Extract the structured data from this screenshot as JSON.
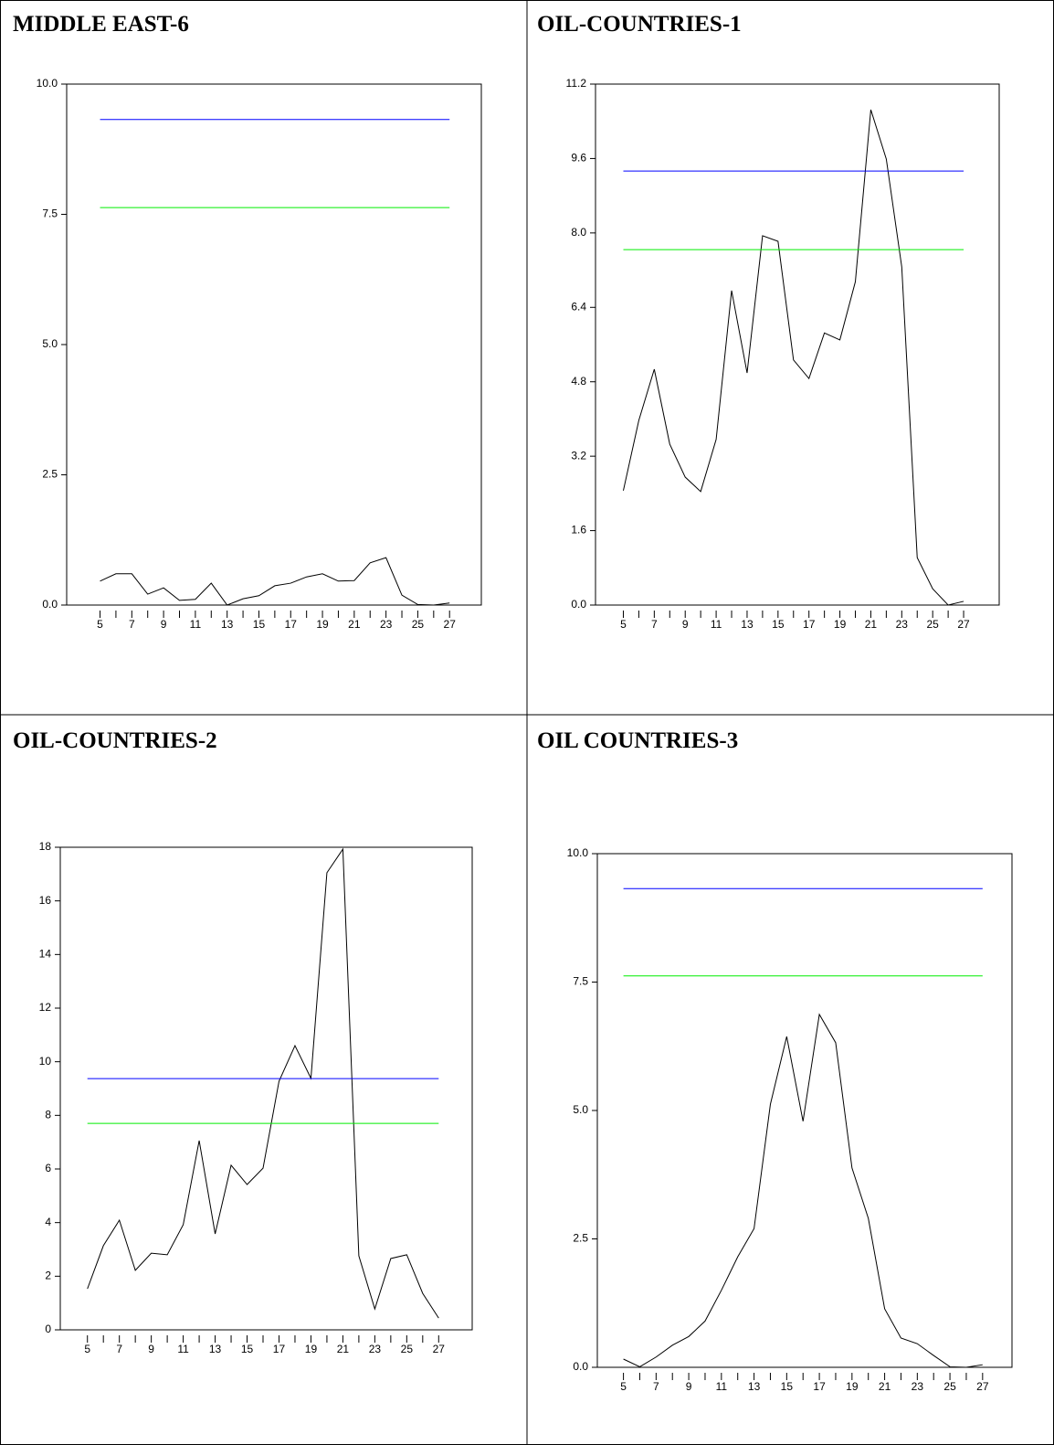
{
  "chart_data": [
    {
      "type": "line",
      "title": "MIDDLE EAST-6",
      "x": [
        5,
        6,
        7,
        8,
        9,
        10,
        11,
        12,
        13,
        14,
        15,
        16,
        17,
        18,
        19,
        20,
        21,
        22,
        23,
        24,
        25,
        26,
        27
      ],
      "series": [
        {
          "color": "#000000",
          "values": [
            0.46,
            0.6,
            0.6,
            0.21,
            0.33,
            0.09,
            0.11,
            0.42,
            0,
            0.12,
            0.18,
            0.37,
            0.42,
            0.54,
            0.6,
            0.46,
            0.47,
            0.81,
            0.91,
            0.19,
            0.01,
            0,
            0.04
          ]
        },
        {
          "color": "#0000ff",
          "values": [
            9.32,
            9.32,
            9.32,
            9.32,
            9.32,
            9.32,
            9.32,
            9.32,
            9.32,
            9.32,
            9.32,
            9.32,
            9.32,
            9.32,
            9.32,
            9.32,
            9.32,
            9.32,
            9.32,
            9.32,
            9.32,
            9.32,
            9.32
          ]
        },
        {
          "color": "#00ee00",
          "values": [
            7.63,
            7.63,
            7.63,
            7.63,
            7.63,
            7.63,
            7.63,
            7.63,
            7.63,
            7.63,
            7.63,
            7.63,
            7.63,
            7.63,
            7.63,
            7.63,
            7.63,
            7.63,
            7.63,
            7.63,
            7.63,
            7.63,
            7.63
          ]
        }
      ],
      "xlim": [
        2.9,
        29
      ],
      "xticks": [
        5,
        7,
        9,
        11,
        13,
        15,
        17,
        19,
        21,
        23,
        25,
        27
      ],
      "ylim": [
        0,
        10
      ],
      "yticks": [
        {
          "value": 0,
          "label": "0.0"
        },
        {
          "value": 2.5,
          "label": "2.5"
        },
        {
          "value": 5,
          "label": "5.0"
        },
        {
          "value": 7.5,
          "label": "7.5"
        },
        {
          "value": 10,
          "label": "10.0"
        }
      ]
    },
    {
      "type": "line",
      "title": "OIL-COUNTRIES-1",
      "x": [
        5,
        6,
        7,
        8,
        9,
        10,
        11,
        12,
        13,
        14,
        15,
        16,
        17,
        18,
        19,
        20,
        21,
        22,
        23,
        24,
        25,
        26,
        27
      ],
      "series": [
        {
          "color": "#000000",
          "values": [
            2.46,
            3.97,
            5.07,
            3.46,
            2.75,
            2.44,
            3.56,
            6.76,
            4.99,
            7.94,
            7.82,
            5.27,
            4.87,
            5.85,
            5.7,
            6.95,
            10.65,
            9.59,
            7.27,
            1.02,
            0.35,
            0,
            0.08
          ]
        },
        {
          "color": "#0000ff",
          "values": [
            9.33,
            9.33,
            9.33,
            9.33,
            9.33,
            9.33,
            9.33,
            9.33,
            9.33,
            9.33,
            9.33,
            9.33,
            9.33,
            9.33,
            9.33,
            9.33,
            9.33,
            9.33,
            9.33,
            9.33,
            9.33,
            9.33,
            9.33
          ]
        },
        {
          "color": "#00ee00",
          "values": [
            7.64,
            7.64,
            7.64,
            7.64,
            7.64,
            7.64,
            7.64,
            7.64,
            7.64,
            7.64,
            7.64,
            7.64,
            7.64,
            7.64,
            7.64,
            7.64,
            7.64,
            7.64,
            7.64,
            7.64,
            7.64,
            7.64,
            7.64
          ]
        }
      ],
      "xlim": [
        3.2,
        29.3
      ],
      "xticks": [
        5,
        7,
        9,
        11,
        13,
        15,
        17,
        19,
        21,
        23,
        25,
        27
      ],
      "ylim": [
        0,
        11.2
      ],
      "yticks": [
        {
          "value": 0,
          "label": "0.0"
        },
        1.6,
        3.2,
        4.8,
        6.4,
        {
          "value": 8,
          "label": "8.0"
        },
        9.6,
        11.2
      ]
    },
    {
      "type": "line",
      "title": "OIL-COUNTRIES-2",
      "x": [
        5,
        6,
        7,
        8,
        9,
        10,
        11,
        12,
        13,
        14,
        15,
        16,
        17,
        18,
        19,
        20,
        21,
        22,
        23,
        24,
        25,
        26,
        27
      ],
      "series": [
        {
          "color": "#000000",
          "values": [
            1.53,
            3.14,
            4.09,
            2.22,
            2.86,
            2.8,
            3.92,
            7.06,
            3.58,
            6.14,
            5.42,
            6.03,
            9.27,
            10.6,
            9.38,
            17.05,
            17.93,
            2.76,
            0.78,
            2.66,
            2.8,
            1.36,
            0.44
          ]
        },
        {
          "color": "#0000ff",
          "values": [
            9.37,
            9.37,
            9.37,
            9.37,
            9.37,
            9.37,
            9.37,
            9.37,
            9.37,
            9.37,
            9.37,
            9.37,
            9.37,
            9.37,
            9.37,
            9.37,
            9.37,
            9.37,
            9.37,
            9.37,
            9.37,
            9.37,
            9.37
          ]
        },
        {
          "color": "#00ee00",
          "values": [
            7.7,
            7.7,
            7.7,
            7.7,
            7.7,
            7.7,
            7.7,
            7.7,
            7.7,
            7.7,
            7.7,
            7.7,
            7.7,
            7.7,
            7.7,
            7.7,
            7.7,
            7.7,
            7.7,
            7.7,
            7.7,
            7.7,
            7.7
          ]
        }
      ],
      "xlim": [
        3.3,
        29.1
      ],
      "xticks": [
        5,
        7,
        9,
        11,
        13,
        15,
        17,
        19,
        21,
        23,
        25,
        27
      ],
      "ylim": [
        0,
        18
      ],
      "yticks": [
        0,
        2,
        4,
        6,
        8,
        10,
        12,
        14,
        16,
        18
      ]
    },
    {
      "type": "line",
      "title": "OIL COUNTRIES-3",
      "x": [
        5,
        6,
        7,
        8,
        9,
        10,
        11,
        12,
        13,
        14,
        15,
        16,
        17,
        18,
        19,
        20,
        21,
        22,
        23,
        24,
        25,
        26,
        27
      ],
      "series": [
        {
          "color": "#000000",
          "values": [
            0.16,
            0.01,
            0.2,
            0.43,
            0.6,
            0.9,
            1.5,
            2.15,
            2.7,
            5.12,
            6.44,
            4.79,
            6.87,
            6.32,
            3.88,
            2.9,
            1.14,
            0.57,
            0.46,
            0.23,
            0.01,
            0,
            0.05
          ]
        },
        {
          "color": "#0000ff",
          "values": [
            9.32,
            9.32,
            9.32,
            9.32,
            9.32,
            9.32,
            9.32,
            9.32,
            9.32,
            9.32,
            9.32,
            9.32,
            9.32,
            9.32,
            9.32,
            9.32,
            9.32,
            9.32,
            9.32,
            9.32,
            9.32,
            9.32,
            9.32
          ]
        },
        {
          "color": "#00ee00",
          "values": [
            7.62,
            7.62,
            7.62,
            7.62,
            7.62,
            7.62,
            7.62,
            7.62,
            7.62,
            7.62,
            7.62,
            7.62,
            7.62,
            7.62,
            7.62,
            7.62,
            7.62,
            7.62,
            7.62,
            7.62,
            7.62,
            7.62,
            7.62
          ]
        }
      ],
      "xlim": [
        3.4,
        28.8
      ],
      "xticks": [
        5,
        7,
        9,
        11,
        13,
        15,
        17,
        19,
        21,
        23,
        25,
        27
      ],
      "ylim": [
        0,
        10
      ],
      "yticks": [
        {
          "value": 0,
          "label": "0.0"
        },
        {
          "value": 2.5,
          "label": "2.5"
        },
        {
          "value": 5,
          "label": "5.0"
        },
        {
          "value": 7.5,
          "label": "7.5"
        },
        {
          "value": 10,
          "label": "10.0"
        }
      ]
    }
  ]
}
